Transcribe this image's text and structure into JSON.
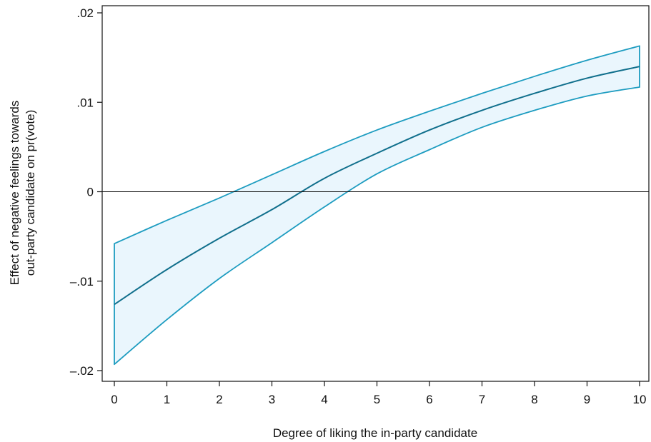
{
  "chart_data": {
    "type": "line",
    "title": "",
    "xlabel": "Degree of liking the in-party candidate",
    "ylabel_lines": [
      "Effect of negative feelings towards",
      "out-party candidate on pr(vote)"
    ],
    "xlim": [
      0,
      10
    ],
    "ylim": [
      -0.02,
      0.02
    ],
    "x_ticks": [
      0,
      1,
      2,
      3,
      4,
      5,
      6,
      7,
      8,
      9,
      10
    ],
    "x_tick_labels": [
      "0",
      "1",
      "2",
      "3",
      "4",
      "5",
      "6",
      "7",
      "8",
      "9",
      "10"
    ],
    "y_ticks": [
      -0.02,
      -0.01,
      0,
      0.01,
      0.02
    ],
    "y_tick_labels": [
      "–.02",
      "–.01",
      "0",
      ".01",
      ".02"
    ],
    "reference_line_y": 0,
    "grid": false,
    "x": [
      0,
      1,
      2,
      3,
      4,
      5,
      6,
      7,
      8,
      9,
      10
    ],
    "series": [
      {
        "role": "estimate",
        "values": [
          -0.0126,
          -0.0087,
          -0.0052,
          -0.002,
          0.0015,
          0.0043,
          0.0069,
          0.0091,
          0.011,
          0.0127,
          0.014
        ]
      },
      {
        "role": "upper_ci",
        "values": [
          -0.0058,
          -0.0032,
          -0.0007,
          0.0019,
          0.0045,
          0.0069,
          0.009,
          0.011,
          0.0129,
          0.0147,
          0.0163
        ]
      },
      {
        "role": "lower_ci",
        "values": [
          -0.0193,
          -0.0143,
          -0.0097,
          -0.0057,
          -0.0017,
          0.002,
          0.0047,
          0.0072,
          0.0091,
          0.0107,
          0.0117
        ]
      }
    ],
    "colors": {
      "band_fill": "#eaf6fd",
      "band_edge": "#1d9cc0",
      "estimate_line": "#106f8c",
      "axis": "#111111",
      "reference_line": "#111111"
    }
  }
}
